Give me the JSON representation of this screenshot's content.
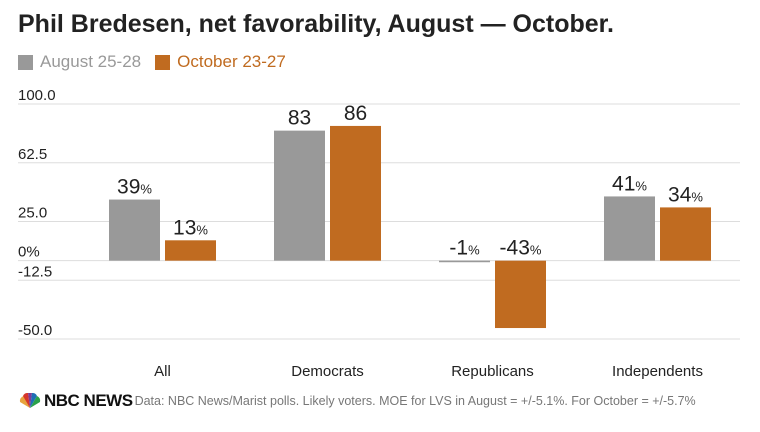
{
  "title": "Phil Bredesen, net favorability, August — October.",
  "colors": {
    "series1": "#999999",
    "series2": "#c06b20",
    "grid": "#dddddd",
    "axis_text": "#222222"
  },
  "chart_data": {
    "type": "bar",
    "title": "Phil Bredesen, net favorability, August — October.",
    "categories": [
      "All",
      "Democrats",
      "Republicans",
      "Independents"
    ],
    "series": [
      {
        "name": "August 25-28",
        "values": [
          39,
          83,
          -1,
          41
        ],
        "labels": [
          "39%",
          "83",
          "-1%",
          "41%"
        ]
      },
      {
        "name": "October 23-27",
        "values": [
          13,
          86,
          -43,
          34
        ],
        "labels": [
          "13%",
          "86",
          "-43%",
          "34%"
        ]
      }
    ],
    "yticks": [
      "100.0",
      "62.5",
      "25.0",
      "0%",
      "-12.5",
      "-50.0"
    ],
    "ytick_values": [
      100,
      62.5,
      25,
      0,
      -12.5,
      -50
    ],
    "ylim": [
      -50,
      100
    ],
    "grid": true,
    "legend": "top-left"
  },
  "footer": {
    "logo_text": "NBC NEWS",
    "source": "Data: NBC News/Marist polls. Likely voters. MOE for LVS in August = +/-5.1%. For October = +/-5.7%"
  }
}
